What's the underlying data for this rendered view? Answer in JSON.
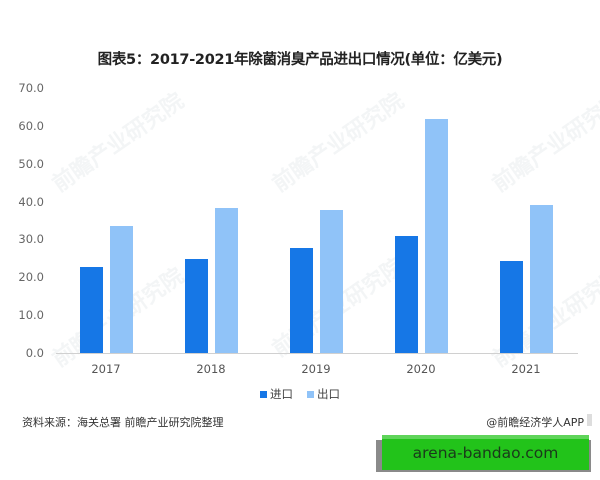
{
  "title": "图表5：2017-2021年除菌消臭产品进出口情况(单位：亿美元)",
  "source": "资料来源：海关总署 前瞻产业研究院整理",
  "credit": "@前瞻经济学人APP",
  "banner": "arena-bandao.com",
  "watermark": "前瞻产业研究院",
  "colors": {
    "import": "#1677e6",
    "export": "#90c3f8"
  },
  "legend": [
    {
      "label": "进口",
      "color": "#1677e6"
    },
    {
      "label": "出口",
      "color": "#90c3f8"
    }
  ],
  "yticks": [
    "0.0",
    "10.0",
    "20.0",
    "30.0",
    "40.0",
    "50.0",
    "60.0",
    "70.0"
  ],
  "chart_data": {
    "type": "bar",
    "title": "图表5：2017-2021年除菌消臭产品进出口情况(单位：亿美元)",
    "categories": [
      "2017",
      "2018",
      "2019",
      "2020",
      "2021"
    ],
    "series": [
      {
        "name": "进口",
        "values": [
          22.7,
          24.8,
          27.7,
          30.9,
          24.3
        ]
      },
      {
        "name": "出口",
        "values": [
          33.5,
          38.3,
          37.8,
          61.8,
          39.1
        ]
      }
    ],
    "xlabel": "",
    "ylabel": "亿美元",
    "ylim": [
      0,
      70
    ],
    "ytick_step": 10,
    "grid": false,
    "legend_position": "bottom"
  }
}
